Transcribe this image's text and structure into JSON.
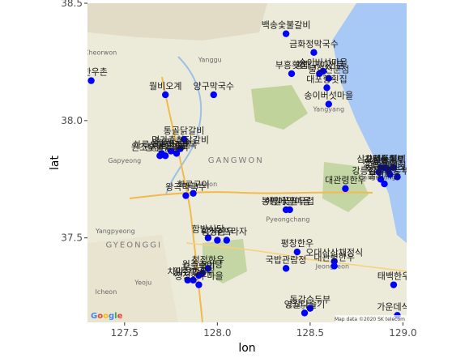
{
  "chart_data": {
    "type": "scatter",
    "xlabel": "lon",
    "ylabel": "lat",
    "xlim": [
      127.3,
      129.02
    ],
    "ylim": [
      37.14,
      38.5
    ],
    "x_ticks": [
      127.5,
      128.0,
      128.5,
      129.0
    ],
    "y_ticks": [
      37.5,
      38.0,
      38.5
    ],
    "x_tick_labels": [
      "127.5",
      "128.0",
      "128.5",
      "129.0"
    ],
    "y_tick_labels": [
      "37.5",
      "38.0",
      "38.5"
    ],
    "point_color": "#0000ff",
    "grid": false,
    "basemap": {
      "attribution": "Google",
      "credit": "Map data ©2020 SK telecom",
      "region_labels": [
        {
          "text": "GANGWON",
          "lon": 128.1,
          "lat": 37.82
        },
        {
          "text": "GYEONGGI",
          "lon": 127.55,
          "lat": 37.46
        }
      ],
      "place_labels": [
        {
          "text": "Cheorwon",
          "lon": 127.37,
          "lat": 38.28
        },
        {
          "text": "Yanggu",
          "lon": 127.96,
          "lat": 38.25
        },
        {
          "text": "Gapyeong",
          "lon": 127.5,
          "lat": 37.82
        },
        {
          "text": "Hongcheon",
          "lon": 127.9,
          "lat": 37.72
        },
        {
          "text": "Yangpyeong",
          "lon": 127.45,
          "lat": 37.52
        },
        {
          "text": "Pyeongchang",
          "lon": 128.38,
          "lat": 37.57
        },
        {
          "text": "Yangyang",
          "lon": 128.6,
          "lat": 38.04
        },
        {
          "text": "Gangneung",
          "lon": 128.86,
          "lat": 37.75
        },
        {
          "text": "Yeoju",
          "lon": 127.6,
          "lat": 37.3
        },
        {
          "text": "Icheon",
          "lon": 127.4,
          "lat": 37.26
        },
        {
          "text": "Yeongwol",
          "lon": 128.45,
          "lat": 37.2
        },
        {
          "text": "Jeongseon",
          "lon": 128.62,
          "lat": 37.37
        }
      ]
    },
    "points": [
      {
        "lon": 128.37,
        "lat": 38.37,
        "label": "백송숯불갈비"
      },
      {
        "lon": 128.52,
        "lat": 38.29,
        "label": "금화정막국수"
      },
      {
        "lon": 127.32,
        "lat": 38.17,
        "label": "선한우촌"
      },
      {
        "lon": 128.4,
        "lat": 38.2,
        "label": "부흥횟집"
      },
      {
        "lon": 128.55,
        "lat": 38.2,
        "label": "황태구이전문"
      },
      {
        "lon": 128.57,
        "lat": 38.21,
        "label": "송이버섯마을"
      },
      {
        "lon": 128.6,
        "lat": 38.18,
        "label": "물회전문점"
      },
      {
        "lon": 128.59,
        "lat": 38.14,
        "label": "대포항횟집"
      },
      {
        "lon": 128.6,
        "lat": 38.07,
        "label": "송이버섯마을"
      },
      {
        "lon": 127.72,
        "lat": 38.11,
        "label": "월비오계"
      },
      {
        "lon": 127.98,
        "lat": 38.11,
        "label": "양구막국수"
      },
      {
        "lon": 127.82,
        "lat": 37.92,
        "label": "통골닭갈비"
      },
      {
        "lon": 127.8,
        "lat": 37.88,
        "label": "명가춘천닭갈비"
      },
      {
        "lon": 127.7,
        "lat": 37.86,
        "label": "하루숯불닭갈비"
      },
      {
        "lon": 127.72,
        "lat": 37.85,
        "label": "춘천막국수"
      },
      {
        "lon": 127.75,
        "lat": 37.87,
        "label": "샘밭막국수"
      },
      {
        "lon": 127.69,
        "lat": 37.85,
        "label": "원조숯불닭갈비"
      },
      {
        "lon": 127.78,
        "lat": 37.86,
        "label": "닭갈비골목"
      },
      {
        "lon": 127.83,
        "lat": 37.68,
        "label": "왕곡막국수"
      },
      {
        "lon": 127.87,
        "lat": 37.69,
        "label": "화로구이"
      },
      {
        "lon": 128.37,
        "lat": 37.62,
        "label": "봉평메밀마을"
      },
      {
        "lon": 128.39,
        "lat": 37.62,
        "label": "메밀꽃필무렵"
      },
      {
        "lon": 128.69,
        "lat": 37.71,
        "label": "대관령한우"
      },
      {
        "lon": 128.87,
        "lat": 37.78,
        "label": "정원영콩"
      },
      {
        "lon": 128.9,
        "lat": 37.8,
        "label": "초당순두부"
      },
      {
        "lon": 128.92,
        "lat": 37.79,
        "label": "동화가든"
      },
      {
        "lon": 128.95,
        "lat": 37.8,
        "label": "삼교리동치미막국수"
      },
      {
        "lon": 128.88,
        "lat": 37.75,
        "label": "강릉짬뽕순두부"
      },
      {
        "lon": 128.9,
        "lat": 37.73,
        "label": "물회마을"
      },
      {
        "lon": 128.93,
        "lat": 37.77,
        "label": "강문해변횟집"
      },
      {
        "lon": 128.97,
        "lat": 37.76,
        "label": "초당할머니순두부"
      },
      {
        "lon": 127.95,
        "lat": 37.5,
        "label": "함밭식당"
      },
      {
        "lon": 128.0,
        "lat": 37.49,
        "label": "횡성한우"
      },
      {
        "lon": 128.05,
        "lat": 37.49,
        "label": "한우프라자"
      },
      {
        "lon": 127.92,
        "lat": 37.35,
        "label": "원주추어탕"
      },
      {
        "lon": 127.9,
        "lat": 37.34,
        "label": "오크밸리"
      },
      {
        "lon": 127.95,
        "lat": 37.37,
        "label": "청정한우"
      },
      {
        "lon": 127.87,
        "lat": 37.32,
        "label": "원주막국수"
      },
      {
        "lon": 127.9,
        "lat": 37.3,
        "label": "청정한우마을"
      },
      {
        "lon": 127.84,
        "lat": 37.32,
        "label": "치악산한우"
      },
      {
        "lon": 128.37,
        "lat": 37.37,
        "label": "국밥관람정"
      },
      {
        "lon": 128.43,
        "lat": 37.44,
        "label": "평창한우"
      },
      {
        "lon": 128.63,
        "lat": 37.38,
        "label": "대관령한우"
      },
      {
        "lon": 128.63,
        "lat": 37.4,
        "label": "오대산산채정식"
      },
      {
        "lon": 128.47,
        "lat": 37.18,
        "label": "영월다슬기"
      },
      {
        "lon": 128.5,
        "lat": 37.2,
        "label": "동강순두부"
      },
      {
        "lon": 128.97,
        "lat": 37.17,
        "label": "가운데식당"
      },
      {
        "lon": 128.95,
        "lat": 37.3,
        "label": "태백한우"
      },
      {
        "lon": 128.88,
        "lat": 37.8,
        "label": "사천물회"
      }
    ],
    "label_list": [
      "백송숯불갈비",
      "금화정막국수",
      "선한우촌",
      "부흥횟집",
      "황태구이전문",
      "송이버섯마을",
      "물회전문점",
      "대포항횟집",
      "월비오계",
      "양구막국수",
      "통골닭갈비",
      "명가춘천닭갈비",
      "하루숯불닭갈비",
      "춘천막국수",
      "샘밭막국수",
      "원조숯불닭갈비",
      "닭갈비골목",
      "왕곡막국수",
      "화로구이",
      "봉평메밀마을",
      "메밀꽃필무렵",
      "대관령한우",
      "정원영콩",
      "초당순두부",
      "동화가든",
      "삼교리동치미막국수",
      "강릉짬뽕순두부",
      "물회마을",
      "강문해변횟집",
      "초당할머니순두부",
      "함밭식당",
      "횡성한우",
      "한우프라자",
      "원주추어탕",
      "오크밸리",
      "청정한우",
      "원주막국수",
      "청정한우마을",
      "치악산한우",
      "국밥관람정",
      "평창한우",
      "오대산산채정식",
      "영월다슬기",
      "동강순두부",
      "가운데식당",
      "태백한우",
      "사천물회"
    ]
  }
}
